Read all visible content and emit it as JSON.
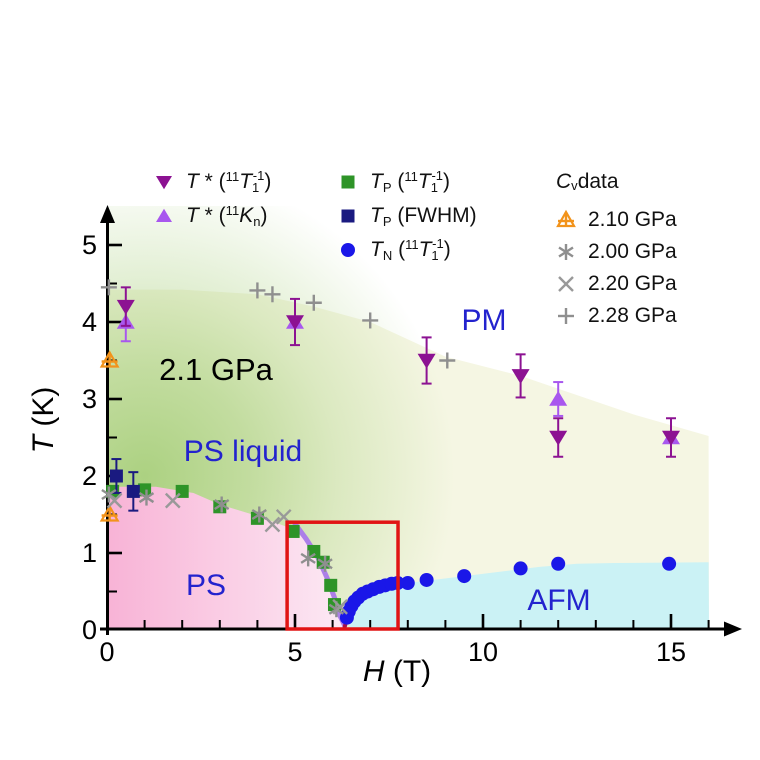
{
  "annotation_pressure": "2.1 GPa",
  "phase_labels": {
    "pm": "PM",
    "ps_liquid": "PS liquid",
    "ps": "PS",
    "afm": "AFM"
  },
  "legend": {
    "cv_header_html": "<i>C</i><sub>v</sub> data",
    "items": [
      {
        "label_html": "<i>T</i> * (<sup>11</sup><i>T</i><sub>1</sub><sup class=\"st\">-1</sup>)"
      },
      {
        "label_html": "<i>T</i> * (<sup>11</sup><i>K</i><sub>n</sub>)"
      },
      {
        "label_html": "<i>T</i><sub>P</sub> (<sup>11</sup><i>T</i><sub>1</sub><sup class=\"st\">-1</sup>)"
      },
      {
        "label_html": "<i>T</i><sub>P</sub> (FWHM)"
      },
      {
        "label_html": "<i>T</i><sub>N</sub> (<sup>11</sup><i>T</i><sub>1</sub><sup class=\"st\">-1</sup>)"
      },
      {
        "label_html": "2.10 GPa"
      },
      {
        "label_html": "2.00 GPa"
      },
      {
        "label_html": "2.20 GPa"
      },
      {
        "label_html": "2.28 GPa"
      }
    ]
  },
  "chart_data": {
    "type": "scatter",
    "title": "",
    "xlabel_html": "<i>H</i> (T)",
    "ylabel_html": "<i>T</i> (K)",
    "xlabel_plain": "H (T)",
    "ylabel_plain": "T (K)",
    "x_range": [
      0,
      16.4
    ],
    "y_range": [
      0,
      5.5
    ],
    "x_ticks": [
      0,
      5,
      10,
      15
    ],
    "x_minor": [
      1,
      2,
      3,
      4,
      6,
      7,
      8,
      9,
      11,
      12,
      13,
      14,
      16
    ],
    "y_ticks": [
      0,
      1,
      2,
      3,
      4,
      5
    ],
    "y_minor": [
      0.5,
      1.5,
      2.5,
      3.5,
      4.5
    ],
    "annotation": "2.1 GPa",
    "series": [
      {
        "name": "T* (11T1-1)",
        "marker": "triangle-down",
        "color": "#8C1292",
        "points": [
          [
            0.5,
            4.2,
            0.25
          ],
          [
            5,
            4.0,
            0.3
          ],
          [
            8.5,
            3.5,
            0.3
          ],
          [
            11,
            3.3,
            0.28
          ],
          [
            12,
            2.5,
            0.25
          ],
          [
            15,
            2.5,
            0.25
          ]
        ]
      },
      {
        "name": "T* (11Kn)",
        "marker": "triangle-up",
        "color": "#A857EE",
        "points": [
          [
            0.5,
            4.0,
            0.25
          ],
          [
            5,
            4.0,
            0
          ],
          [
            12,
            3.0,
            0.22
          ],
          [
            15,
            2.5,
            0
          ]
        ]
      },
      {
        "name": "TP (11T1-1)",
        "marker": "square",
        "color": "#2E9428",
        "points": [
          [
            0.15,
            1.8,
            0
          ],
          [
            1,
            1.82,
            0
          ],
          [
            2,
            1.8,
            0
          ],
          [
            3,
            1.6,
            0
          ],
          [
            4,
            1.45,
            0
          ],
          [
            4.95,
            1.28,
            0
          ],
          [
            5.5,
            1.02,
            0
          ],
          [
            5.75,
            0.88,
            0
          ],
          [
            5.95,
            0.58,
            0
          ],
          [
            6.05,
            0.33,
            0
          ]
        ]
      },
      {
        "name": "TP (FWHM)",
        "marker": "square",
        "color": "#1A1A80",
        "points": [
          [
            0.25,
            2.0,
            0.22
          ],
          [
            0.7,
            1.8,
            0.25
          ]
        ]
      },
      {
        "name": "TN (11T1-1)",
        "marker": "circle",
        "color": "#1A17E8",
        "points": [
          [
            6.38,
            0.16,
            0
          ],
          [
            6.43,
            0.24,
            0
          ],
          [
            6.5,
            0.31,
            0
          ],
          [
            6.58,
            0.37,
            0
          ],
          [
            6.68,
            0.42,
            0
          ],
          [
            6.8,
            0.47,
            0
          ],
          [
            6.93,
            0.5,
            0
          ],
          [
            7.08,
            0.53,
            0
          ],
          [
            7.24,
            0.56,
            0
          ],
          [
            7.4,
            0.58,
            0
          ],
          [
            7.57,
            0.6,
            0
          ],
          [
            7.73,
            0.61,
            0
          ],
          [
            8.0,
            0.61,
            0
          ],
          [
            8.5,
            0.65,
            0
          ],
          [
            9.5,
            0.7,
            0
          ],
          [
            11.0,
            0.8,
            0
          ],
          [
            12.0,
            0.86,
            0
          ],
          [
            14.95,
            0.86,
            0
          ]
        ]
      },
      {
        "name": "Cv 2.10 GPa",
        "marker": "triangle-open-plus",
        "color": "#F2931B",
        "points": [
          [
            0.07,
            3.5,
            0
          ],
          [
            0.07,
            1.5,
            0
          ]
        ]
      },
      {
        "name": "Cv 2.00 GPa",
        "marker": "asterisk",
        "color": "#8F8F8F",
        "points": [
          [
            0.05,
            1.76,
            0
          ],
          [
            1.05,
            1.72,
            0
          ],
          [
            3.05,
            1.63,
            0
          ],
          [
            4.05,
            1.5,
            0
          ],
          [
            5.35,
            0.93,
            0
          ],
          [
            5.8,
            0.86,
            0
          ],
          [
            6.1,
            0.27,
            0
          ]
        ]
      },
      {
        "name": "Cv 2.20 GPa",
        "marker": "x",
        "color": "#999999",
        "points": [
          [
            0.2,
            1.68,
            0
          ],
          [
            1.75,
            1.68,
            0
          ],
          [
            4.4,
            1.37,
            0
          ],
          [
            4.7,
            1.47,
            0
          ],
          [
            6.2,
            0.3,
            0
          ]
        ]
      },
      {
        "name": "Cv 2.28 GPa",
        "marker": "plus",
        "color": "#8F8F8F",
        "points": [
          [
            0.05,
            4.45,
            0
          ],
          [
            4.0,
            4.41,
            0
          ],
          [
            4.4,
            4.36,
            0
          ],
          [
            5.5,
            4.25,
            0
          ],
          [
            7.0,
            4.02,
            0
          ],
          [
            9.05,
            3.5,
            0
          ]
        ]
      }
    ],
    "lines": [
      {
        "name": "ps-boundary-fit",
        "color": "#AC7FE8",
        "width": 5,
        "points": [
          [
            5.0,
            1.38
          ],
          [
            5.3,
            1.18
          ],
          [
            5.6,
            0.95
          ],
          [
            5.85,
            0.68
          ],
          [
            6.05,
            0.42
          ],
          [
            6.2,
            0.18
          ],
          [
            6.32,
            0.06
          ]
        ]
      },
      {
        "name": "afm-boundary-fit",
        "color": "#A81246",
        "width": 4,
        "points": [
          [
            6.32,
            0.04
          ],
          [
            6.45,
            0.26
          ],
          [
            6.6,
            0.38
          ],
          [
            6.8,
            0.46
          ],
          [
            7.05,
            0.52
          ],
          [
            7.35,
            0.57
          ],
          [
            7.65,
            0.6
          ]
        ]
      }
    ],
    "highlight_box": {
      "x0": 4.79,
      "x1": 7.74,
      "y0": 0,
      "y1": 1.4,
      "color": "#E11414"
    },
    "regions": {
      "pm": {
        "color": "#F5F6E3",
        "boundary": [
          [
            0,
            4.42
          ],
          [
            2,
            4.42
          ],
          [
            4,
            4.36
          ],
          [
            5.5,
            4.2
          ],
          [
            7,
            4.0
          ],
          [
            9,
            3.55
          ],
          [
            11,
            3.3
          ],
          [
            12.5,
            3.05
          ],
          [
            14,
            2.8
          ],
          [
            16,
            2.52
          ]
        ]
      },
      "ps_liquid": {
        "color": "#A8CF7C"
      },
      "ps": {
        "color_left": "#F8B3D6",
        "color_right": "#FCE9F4",
        "boundary": [
          [
            0,
            1.86
          ],
          [
            1.3,
            1.86
          ],
          [
            2.3,
            1.78
          ],
          [
            3,
            1.63
          ],
          [
            4,
            1.48
          ],
          [
            5,
            1.3
          ],
          [
            5.5,
            1.04
          ],
          [
            5.8,
            0.84
          ],
          [
            6.0,
            0.5
          ],
          [
            6.15,
            0.24
          ],
          [
            6.3,
            0
          ]
        ]
      },
      "afm": {
        "color": "#CBF2F5",
        "boundary": [
          [
            6.45,
            0.12
          ],
          [
            6.6,
            0.36
          ],
          [
            6.9,
            0.47
          ],
          [
            7.3,
            0.55
          ],
          [
            7.8,
            0.6
          ],
          [
            8.5,
            0.64
          ],
          [
            9.5,
            0.7
          ],
          [
            10.5,
            0.76
          ],
          [
            11.5,
            0.82
          ],
          [
            12.5,
            0.86
          ],
          [
            13.5,
            0.87
          ],
          [
            16,
            0.88
          ]
        ]
      }
    }
  }
}
